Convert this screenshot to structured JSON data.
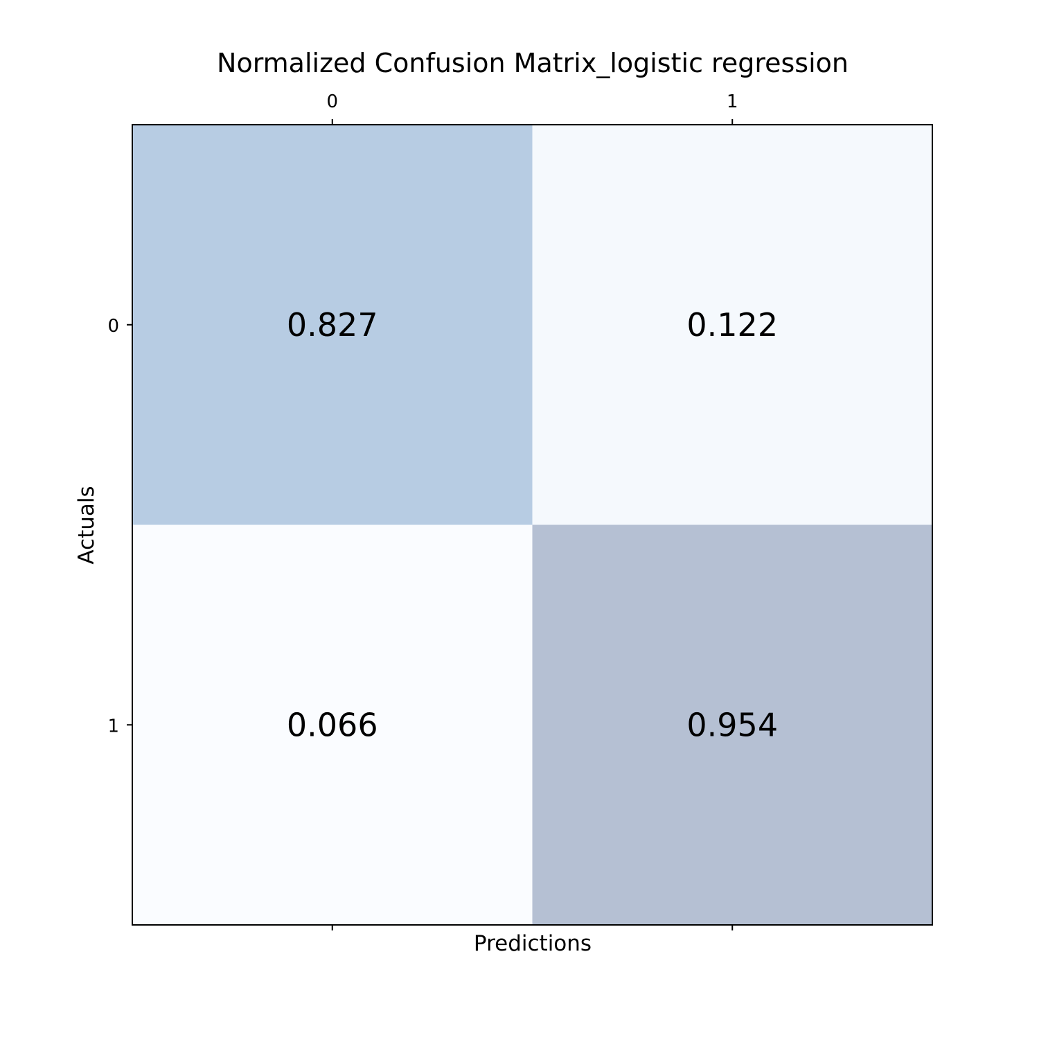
{
  "chart_data": {
    "type": "heatmap",
    "title": "Normalized Confusion Matrix_logistic regression",
    "xlabel": "Predictions",
    "ylabel": "Actuals",
    "x_ticks": [
      "0",
      "1"
    ],
    "y_ticks": [
      "0",
      "1"
    ],
    "x_tick_position": "top",
    "values": [
      [
        0.827,
        0.122
      ],
      [
        0.066,
        0.954
      ]
    ],
    "value_labels": [
      [
        "0.827",
        "0.122"
      ],
      [
        "0.066",
        "0.954"
      ]
    ],
    "cell_colors": [
      [
        "#b7cce3",
        "#f5f9fd"
      ],
      [
        "#fafcff",
        "#b5c0d3"
      ]
    ],
    "grid": false,
    "colorbar": false
  }
}
